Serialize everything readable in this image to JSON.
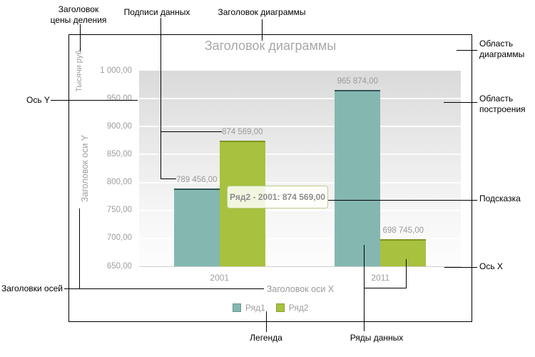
{
  "chart_data": {
    "type": "bar",
    "title": "Заголовок диаграммы",
    "x_axis_title": "Заголовок оси X",
    "y_axis_title": "Заголовок оси Y",
    "y_unit_label": "Тысячи руб.",
    "categories": [
      "2001",
      "2011"
    ],
    "series": [
      {
        "name": "Ряд1",
        "color": "#85b7b1",
        "border_color": "#2f5552",
        "values": [
          789456.0,
          965874.0
        ]
      },
      {
        "name": "Ряд2",
        "color": "#a8c13e",
        "border_color": "#7d9522",
        "values": [
          874569.0,
          698745.0
        ]
      }
    ],
    "data_labels": [
      [
        "789 456,00",
        "965 874,00"
      ],
      [
        "874 569,00",
        "698 745,00"
      ]
    ],
    "y_ticks": [
      "1 000,00",
      "950,00",
      "900,00",
      "850,00",
      "800,00",
      "750,00",
      "700,00",
      "650,00"
    ],
    "ylim_thousands": [
      650,
      1000
    ],
    "grid": "horizontal-bands",
    "legend_position": "bottom",
    "tooltip_text": "Ряд2 - 2001: 874 569,00"
  },
  "annotations": {
    "scale_unit_label": "Заголовок\nцены деления",
    "data_labels_label": "Подписи данных",
    "chart_title_label": "Заголовок диаграммы",
    "chart_area_label": "Область\nдиаграммы",
    "y_axis_label": "Ось Y",
    "plot_area_label": "Область\nпостроения",
    "tooltip_label": "Подсказка",
    "x_axis_label": "Ось X",
    "axis_titles_label": "Заголовки осей",
    "legend_label": "Легенда",
    "data_series_label": "Ряды данных"
  },
  "colors": {
    "series1": "#85b7b1",
    "series2": "#a8c13e",
    "chart_text_gray": "#9e9e9e",
    "annotation_black": "#000000",
    "tooltip_border": "#bccf8e",
    "axis_line": "#cfcfcf"
  }
}
